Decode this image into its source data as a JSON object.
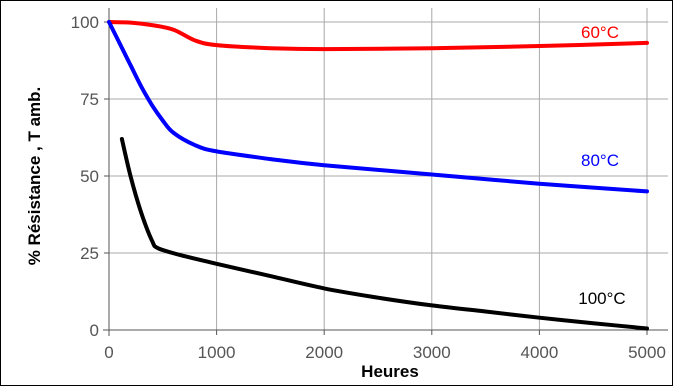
{
  "chart_data": {
    "type": "line",
    "title": "",
    "xlabel": "Heures",
    "ylabel": "% Résistance , T amb.",
    "xlim": [
      0,
      5000
    ],
    "ylim": [
      0,
      100
    ],
    "x_ticks": [
      0,
      1000,
      2000,
      3000,
      4000,
      5000
    ],
    "y_ticks": [
      0,
      25,
      50,
      75,
      100
    ],
    "x_tick_labels": [
      "0",
      "1000",
      "2000",
      "3000",
      "4000",
      "5000"
    ],
    "y_tick_labels": [
      "0",
      "25",
      "50",
      "75",
      "100"
    ],
    "grid": true,
    "legend": "inline labels",
    "series": [
      {
        "name": "60°C",
        "color": "#ff0000",
        "points": [
          [
            0,
            100
          ],
          [
            200,
            99.8
          ],
          [
            400,
            99
          ],
          [
            600,
            97.5
          ],
          [
            800,
            94
          ],
          [
            1000,
            92.5
          ],
          [
            1500,
            91.5
          ],
          [
            2000,
            91.2
          ],
          [
            3000,
            91.5
          ],
          [
            4000,
            92.2
          ],
          [
            5000,
            93.2
          ]
        ]
      },
      {
        "name": "80°C",
        "color": "#0000ff",
        "points": [
          [
            0,
            100
          ],
          [
            100,
            93
          ],
          [
            200,
            86
          ],
          [
            300,
            79
          ],
          [
            400,
            73
          ],
          [
            500,
            68
          ],
          [
            600,
            64
          ],
          [
            800,
            60
          ],
          [
            1000,
            58
          ],
          [
            1500,
            55.5
          ],
          [
            2000,
            53.5
          ],
          [
            3000,
            50.5
          ],
          [
            4000,
            47.5
          ],
          [
            5000,
            45
          ]
        ]
      },
      {
        "name": "100°C",
        "color": "#000000",
        "points": [
          [
            120,
            62
          ],
          [
            200,
            50
          ],
          [
            300,
            38
          ],
          [
            400,
            29
          ],
          [
            460,
            26.5
          ],
          [
            700,
            24
          ],
          [
            1000,
            21.5
          ],
          [
            1500,
            17.5
          ],
          [
            2000,
            13.5
          ],
          [
            2500,
            10.5
          ],
          [
            3000,
            8
          ],
          [
            3500,
            6
          ],
          [
            4000,
            4
          ],
          [
            4500,
            2.2
          ],
          [
            5000,
            0.5
          ]
        ]
      }
    ]
  }
}
